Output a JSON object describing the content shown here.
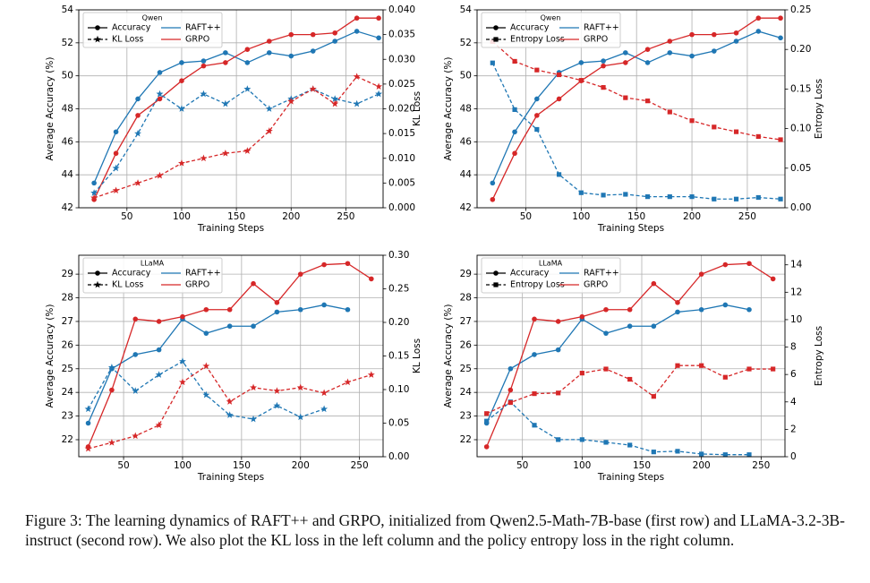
{
  "chart_data": [
    {
      "type": "line",
      "xlabel": "Training Steps",
      "ylabel": "Average Accuracy (%)",
      "y2label": "KL Loss",
      "x": [
        20,
        40,
        60,
        80,
        100,
        120,
        140,
        160,
        180,
        200,
        220,
        240,
        260,
        280
      ],
      "xlim": [
        6,
        284
      ],
      "xticks": [
        50,
        100,
        150,
        200,
        250
      ],
      "ylim": [
        42,
        54
      ],
      "yticks": [
        42,
        44,
        46,
        48,
        50,
        52,
        54
      ],
      "y2lim": [
        0,
        0.04
      ],
      "y2ticks": [
        {
          "value": 0,
          "label": "0.000"
        },
        {
          "value": 0.005,
          "label": "0.005"
        },
        {
          "value": 0.01,
          "label": "0.010"
        },
        {
          "value": 0.015,
          "label": "0.015"
        },
        {
          "value": 0.02,
          "label": "0.020"
        },
        {
          "value": 0.025,
          "label": "0.025"
        },
        {
          "value": 0.03,
          "label": "0.030"
        },
        {
          "value": 0.035,
          "label": "0.035"
        },
        {
          "value": 0.04,
          "label": "0.040"
        }
      ],
      "grid": true,
      "legend": {
        "corner": "upper-left",
        "title": "Qwen",
        "entries": [
          {
            "name": "Accuracy",
            "dashed": false,
            "marker": "circle"
          },
          {
            "name": "KL Loss",
            "dashed": true,
            "marker": "star"
          },
          {
            "name": "RAFT++",
            "color": "#1f77b4"
          },
          {
            "name": "GRPO",
            "color": "#d62728"
          }
        ]
      },
      "series": [
        {
          "color": "#1f77b4",
          "marker": "circle",
          "dashed": false,
          "values": [
            43.5,
            46.6,
            48.6,
            50.2,
            50.8,
            50.9,
            51.4,
            50.8,
            51.4,
            51.2,
            51.5,
            52.1,
            52.7,
            52.3
          ]
        },
        {
          "color": "#d62728",
          "marker": "circle",
          "dashed": false,
          "values": [
            42.5,
            45.3,
            47.6,
            48.6,
            49.7,
            50.6,
            50.8,
            51.6,
            52.1,
            52.5,
            52.5,
            52.6,
            53.5,
            53.5
          ]
        },
        {
          "color": "#1f77b4",
          "marker": "star",
          "dashed": true,
          "axis": "y2",
          "values": [
            0.003,
            0.008,
            0.015,
            0.023,
            0.02,
            0.023,
            0.021,
            0.024,
            0.02,
            0.022,
            0.024,
            0.022,
            0.021,
            0.023
          ]
        },
        {
          "color": "#d62728",
          "marker": "star",
          "dashed": true,
          "axis": "y2",
          "values": [
            0.002,
            0.0035,
            0.005,
            0.0065,
            0.009,
            0.01,
            0.011,
            0.0115,
            0.0155,
            0.0215,
            0.024,
            0.021,
            0.0265,
            0.0245
          ]
        }
      ]
    },
    {
      "type": "line",
      "xlabel": "Training Steps",
      "ylabel": "Average Accuracy (%)",
      "y2label": "Entropy Loss",
      "x": [
        20,
        40,
        60,
        80,
        100,
        120,
        140,
        160,
        180,
        200,
        220,
        240,
        260,
        280
      ],
      "xlim": [
        6,
        284
      ],
      "xticks": [
        50,
        100,
        150,
        200,
        250
      ],
      "ylim": [
        42,
        54
      ],
      "yticks": [
        42,
        44,
        46,
        48,
        50,
        52,
        54
      ],
      "y2lim": [
        0,
        0.25
      ],
      "y2ticks": [
        {
          "value": 0,
          "label": "0.00"
        },
        {
          "value": 0.05,
          "label": "0.05"
        },
        {
          "value": 0.1,
          "label": "0.10"
        },
        {
          "value": 0.15,
          "label": "0.15"
        },
        {
          "value": 0.2,
          "label": "0.20"
        },
        {
          "value": 0.25,
          "label": "0.25"
        }
      ],
      "grid": true,
      "legend": {
        "corner": "upper-left",
        "title": "Qwen",
        "entries": [
          {
            "name": "Accuracy",
            "dashed": false,
            "marker": "circle"
          },
          {
            "name": "Entropy Loss",
            "dashed": true,
            "marker": "square"
          },
          {
            "name": "RAFT++",
            "color": "#1f77b4"
          },
          {
            "name": "GRPO",
            "color": "#d62728"
          }
        ]
      },
      "series": [
        {
          "color": "#1f77b4",
          "marker": "circle",
          "dashed": false,
          "values": [
            43.5,
            46.6,
            48.6,
            50.2,
            50.8,
            50.9,
            51.4,
            50.8,
            51.4,
            51.2,
            51.5,
            52.1,
            52.7,
            52.3
          ]
        },
        {
          "color": "#d62728",
          "marker": "circle",
          "dashed": false,
          "values": [
            42.5,
            45.3,
            47.6,
            48.6,
            49.7,
            50.6,
            50.8,
            51.6,
            52.1,
            52.5,
            52.5,
            52.6,
            53.5,
            53.5
          ]
        },
        {
          "color": "#1f77b4",
          "marker": "square",
          "dashed": true,
          "axis": "y2",
          "values": [
            0.183,
            0.124,
            0.099,
            0.042,
            0.019,
            0.016,
            0.017,
            0.014,
            0.014,
            0.014,
            0.011,
            0.011,
            0.013,
            0.011
          ]
        },
        {
          "color": "#d62728",
          "marker": "square",
          "dashed": true,
          "axis": "y2",
          "values": [
            0.21,
            0.185,
            0.174,
            0.168,
            0.161,
            0.152,
            0.139,
            0.135,
            0.121,
            0.11,
            0.102,
            0.096,
            0.09,
            0.086
          ]
        }
      ]
    },
    {
      "type": "line",
      "xlabel": "Training Steps",
      "ylabel": "Average Accuracy (%)",
      "y2label": "KL Loss",
      "x": [
        20,
        40,
        60,
        80,
        100,
        120,
        140,
        160,
        180,
        200,
        220,
        240,
        260
      ],
      "xlim": [
        12,
        270
      ],
      "xticks": [
        50,
        100,
        150,
        200,
        250
      ],
      "ylim": [
        21.28,
        29.8
      ],
      "yticks": [
        22,
        23,
        24,
        25,
        26,
        27,
        28,
        29
      ],
      "y2lim": [
        0,
        0.3
      ],
      "y2ticks": [
        {
          "value": 0,
          "label": "0.00"
        },
        {
          "value": 0.05,
          "label": "0.05"
        },
        {
          "value": 0.1,
          "label": "0.10"
        },
        {
          "value": 0.15,
          "label": "0.15"
        },
        {
          "value": 0.2,
          "label": "0.20"
        },
        {
          "value": 0.25,
          "label": "0.25"
        },
        {
          "value": 0.3,
          "label": "0.30"
        }
      ],
      "grid": true,
      "legend": {
        "corner": "upper-left",
        "title": "LLaMA",
        "entries": [
          {
            "name": "Accuracy",
            "dashed": false,
            "marker": "circle"
          },
          {
            "name": "KL Loss",
            "dashed": true,
            "marker": "star"
          },
          {
            "name": "RAFT++",
            "color": "#1f77b4"
          },
          {
            "name": "GRPO",
            "color": "#d62728"
          }
        ]
      },
      "series": [
        {
          "color": "#1f77b4",
          "marker": "circle",
          "dashed": false,
          "values": [
            22.7,
            25.0,
            25.6,
            25.8,
            27.1,
            26.5,
            26.8,
            26.8,
            27.4,
            27.5,
            27.7,
            27.5,
            null
          ]
        },
        {
          "color": "#d62728",
          "marker": "circle",
          "dashed": false,
          "values": [
            21.7,
            24.1,
            27.1,
            27.0,
            27.2,
            27.5,
            27.5,
            28.6,
            27.8,
            29.0,
            29.4,
            29.45,
            28.8
          ]
        },
        {
          "color": "#1f77b4",
          "marker": "star",
          "dashed": true,
          "axis": "y2",
          "values": [
            0.071,
            0.133,
            0.098,
            0.122,
            0.142,
            0.092,
            0.062,
            0.056,
            0.076,
            0.059,
            0.071,
            null,
            null
          ]
        },
        {
          "color": "#d62728",
          "marker": "star",
          "dashed": true,
          "axis": "y2",
          "values": [
            0.012,
            0.021,
            0.031,
            0.047,
            0.111,
            0.135,
            0.082,
            0.103,
            0.098,
            0.103,
            0.095,
            0.111,
            0.122
          ]
        }
      ]
    },
    {
      "type": "line",
      "xlabel": "Training Steps",
      "ylabel": "Average Accuracy (%)",
      "y2label": "Entropy Loss",
      "x": [
        20,
        40,
        60,
        80,
        100,
        120,
        140,
        160,
        180,
        200,
        220,
        240,
        260
      ],
      "xlim": [
        12,
        270
      ],
      "xticks": [
        50,
        100,
        150,
        200,
        250
      ],
      "ylim": [
        21.28,
        29.8
      ],
      "yticks": [
        22,
        23,
        24,
        25,
        26,
        27,
        28,
        29
      ],
      "y2lim": [
        0,
        14.7
      ],
      "y2ticks": [
        0,
        2,
        4,
        6,
        8,
        10,
        12,
        14
      ],
      "grid": true,
      "legend": {
        "corner": "upper-left",
        "title": "LLaMA",
        "entries": [
          {
            "name": "Accuracy",
            "dashed": false,
            "marker": "circle"
          },
          {
            "name": "Entropy Loss",
            "dashed": true,
            "marker": "square"
          },
          {
            "name": "RAFT++",
            "color": "#1f77b4"
          },
          {
            "name": "GRPO",
            "color": "#d62728"
          }
        ]
      },
      "series": [
        {
          "color": "#1f77b4",
          "marker": "circle",
          "dashed": false,
          "values": [
            22.7,
            25.0,
            25.6,
            25.8,
            27.1,
            26.5,
            26.8,
            26.8,
            27.4,
            27.5,
            27.7,
            27.5,
            null
          ]
        },
        {
          "color": "#d62728",
          "marker": "circle",
          "dashed": false,
          "values": [
            21.7,
            24.1,
            27.1,
            27.0,
            27.2,
            27.5,
            27.5,
            28.6,
            27.8,
            29.0,
            29.4,
            29.45,
            28.8
          ]
        },
        {
          "color": "#1f77b4",
          "marker": "square",
          "dashed": true,
          "axis": "y2",
          "values": [
            2.6,
            4.0,
            2.3,
            1.25,
            1.25,
            1.05,
            0.85,
            0.35,
            0.4,
            0.2,
            0.15,
            0.15,
            null
          ]
        },
        {
          "color": "#d62728",
          "marker": "square",
          "dashed": true,
          "axis": "y2",
          "values": [
            3.15,
            3.95,
            4.6,
            4.65,
            6.1,
            6.4,
            5.65,
            4.4,
            6.65,
            6.65,
            5.8,
            6.4,
            6.4
          ]
        }
      ]
    }
  ],
  "caption": "Figure 3: The learning dynamics of RAFT++ and GRPO, initialized from Qwen2.5-Math-7B-base (first row) and LLaMA-3.2-3B-instruct (second row). We also plot the KL loss in the left column and the policy entropy loss in the right column."
}
